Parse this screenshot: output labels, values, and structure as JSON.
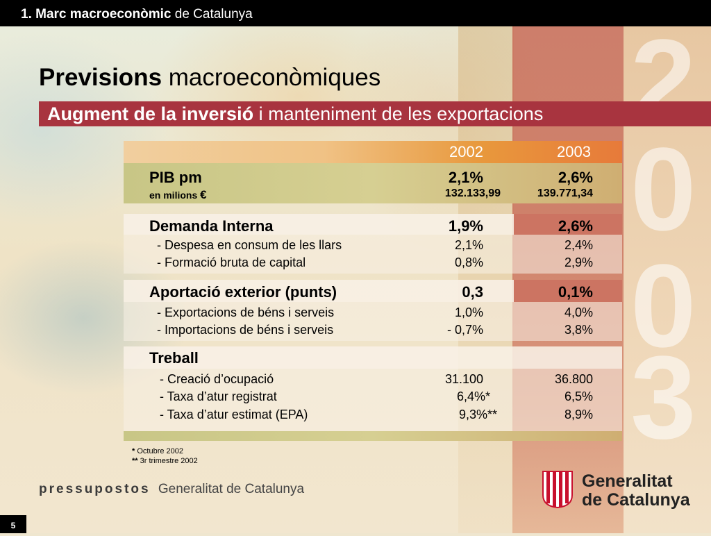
{
  "header": {
    "section_bold": "1. Marc macroeconòmic",
    "section_rest": "de Catalunya"
  },
  "title": {
    "bold": "Previsions",
    "rest": "macroeconòmiques"
  },
  "subtitle": {
    "bold": "Augment de la inversió",
    "rest": "i manteniment de les exportacions"
  },
  "background_digits": [
    "2",
    "0",
    "0",
    "3"
  ],
  "table": {
    "col_2002": "2002",
    "col_2003": "2003",
    "pib": {
      "label": "PIB pm",
      "v2002": "2,1%",
      "v2003": "2,6%",
      "sub_label": "en milions",
      "sub_unit": "€",
      "sub_2002": "132.133,99",
      "sub_2003": "139.771,34"
    },
    "demanda": {
      "label": "Demanda Interna",
      "v2002": "1,9%",
      "v2003": "2,6%",
      "rows": [
        {
          "label": "-  Despesa en consum de les llars",
          "v2002": "2,1%",
          "v2003": "2,4%"
        },
        {
          "label": "-  Formació bruta de capital",
          "v2002": "0,8%",
          "v2003": "2,9%"
        }
      ]
    },
    "aportacio": {
      "label": "Aportació exterior (punts)",
      "v2002": "0,3",
      "v2003": "0,1%",
      "rows": [
        {
          "label": "- Exportacions de béns i serveis",
          "v2002": "1,0%",
          "v2003": "4,0%"
        },
        {
          "label": "- Importacions de béns i serveis",
          "v2002": "- 0,7%",
          "v2003": "3,8%"
        }
      ]
    },
    "treball": {
      "label": "Treball",
      "rows": [
        {
          "label": "- Creació d’ocupació",
          "v2002": "31.100",
          "v2003": "36.800"
        },
        {
          "label": "- Taxa d’atur registrat",
          "v2002": "6,4%*",
          "v2003": "6,5%"
        },
        {
          "label": "- Taxa d’atur estimat (EPA)",
          "v2002": "9,3%**",
          "v2003": "8,9%"
        }
      ]
    }
  },
  "notes": {
    "n1_mark": "*",
    "n1_text": "Octubre 2002",
    "n2_mark": "**",
    "n2_text": "3r trimestre 2002"
  },
  "footer": {
    "brand_bold": "pressupostos",
    "brand_rest": "Generalitat de Catalunya",
    "logo_line1": "Generalitat",
    "logo_line2": "de Catalunya",
    "page_number": "5"
  },
  "colors": {
    "accent_red": "#a8343f",
    "column_red": "#c4604e",
    "black": "#000000"
  }
}
